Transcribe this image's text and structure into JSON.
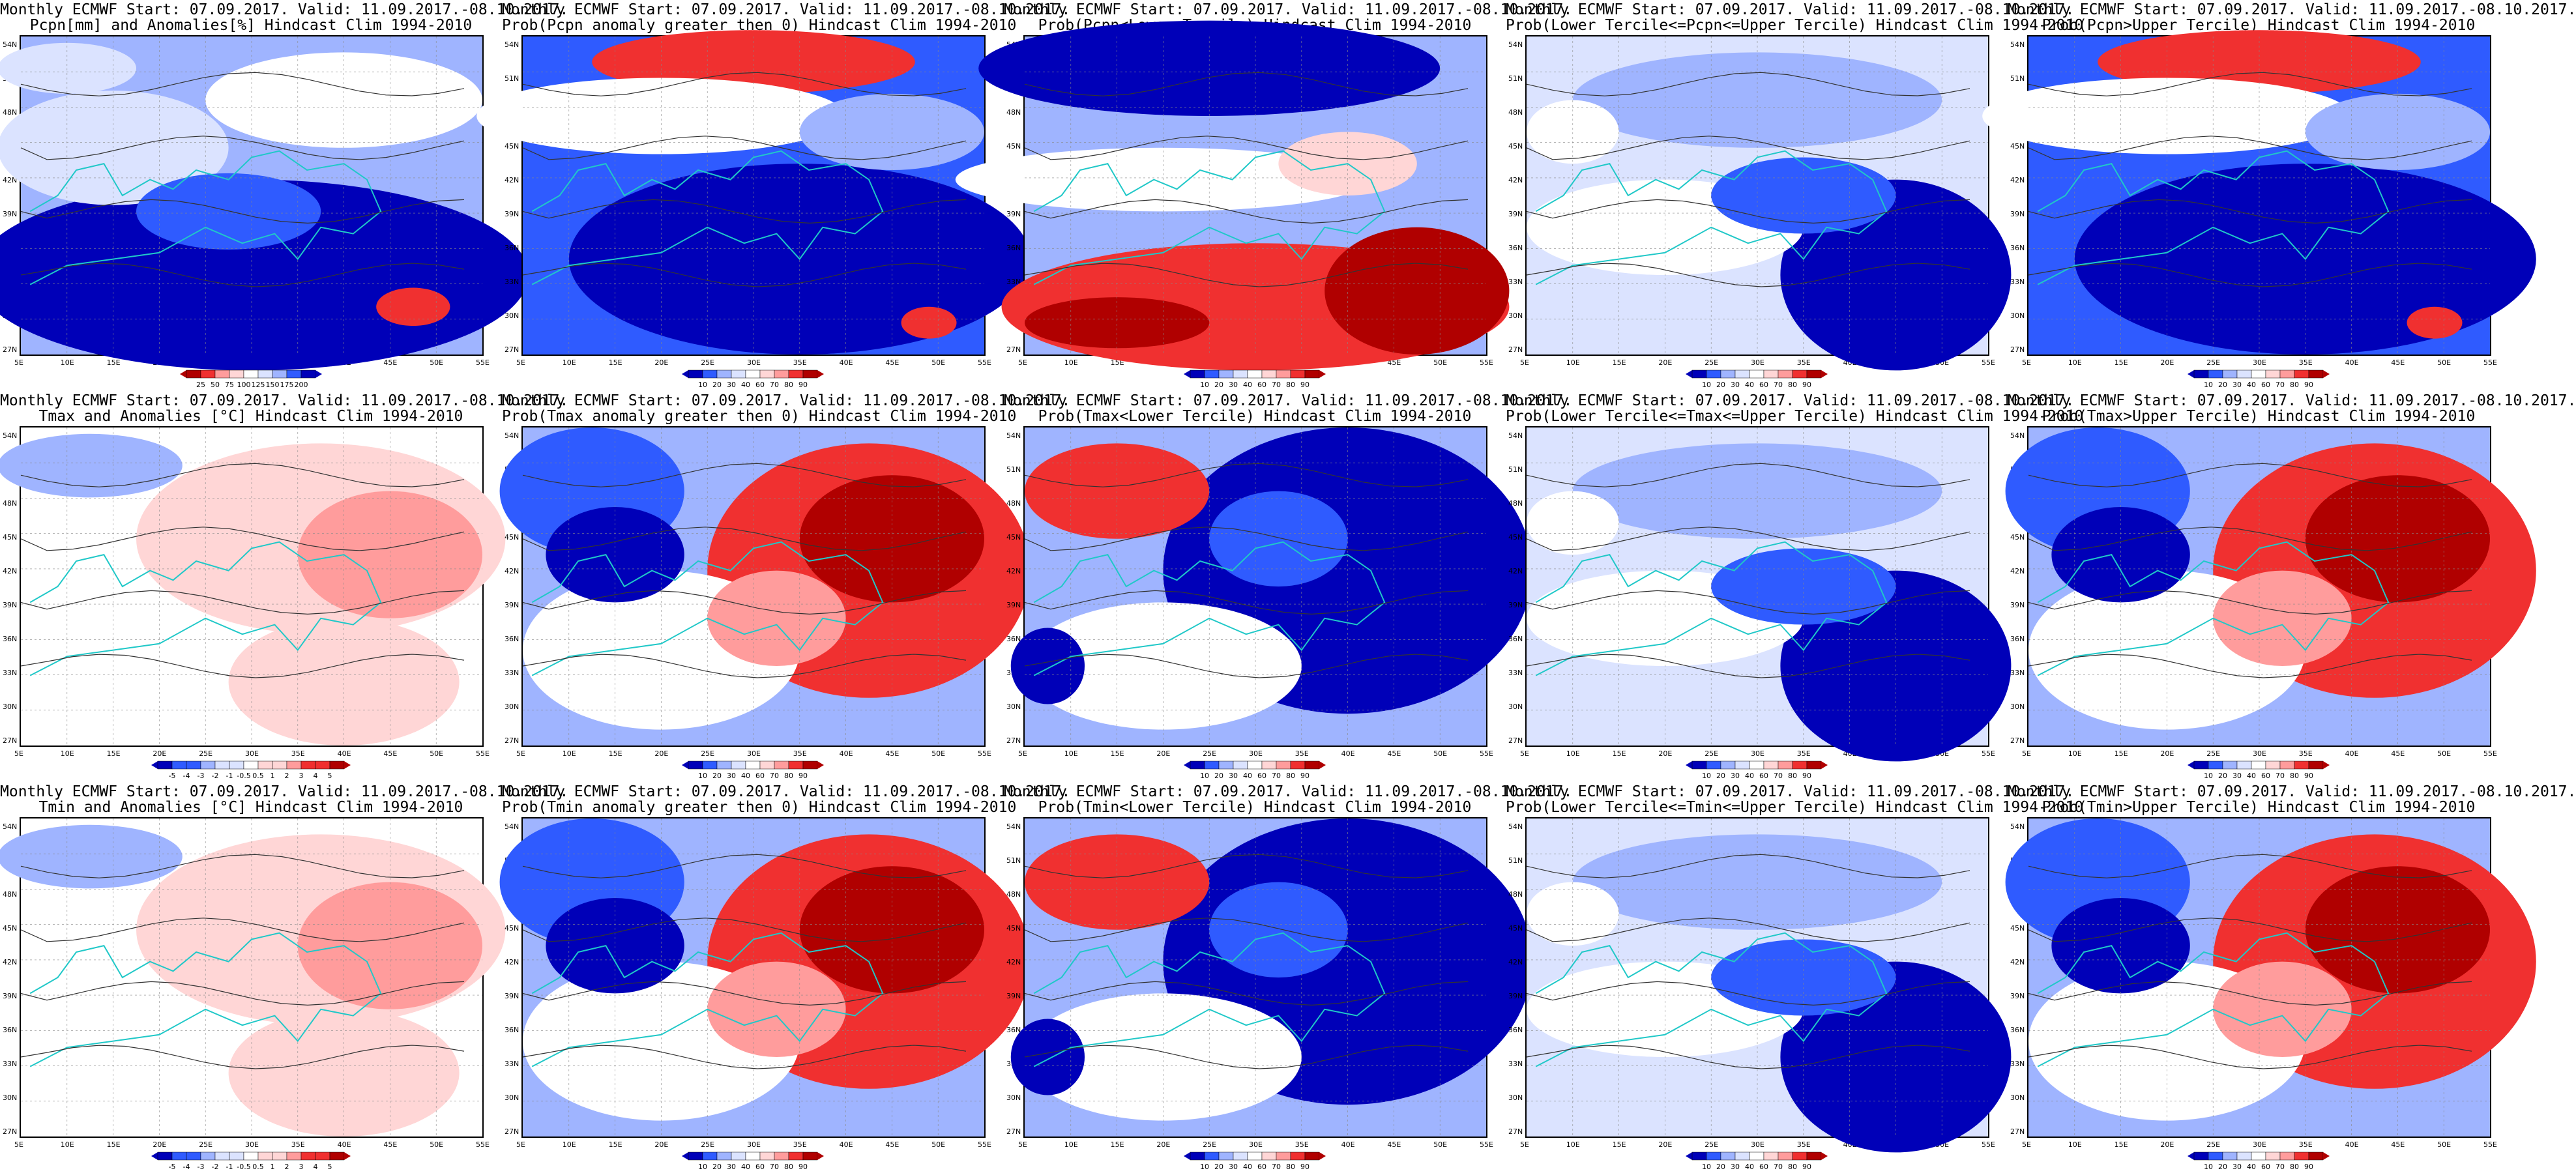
{
  "colors": {
    "deep_blue": "#0000b8",
    "blue": "#2f5bff",
    "light_blue": "#9fb4ff",
    "pale_blue": "#dbe3ff",
    "white": "#ffffff",
    "pale_red": "#ffd6d6",
    "light_red": "#ff9c9c",
    "red": "#f03030",
    "dark_red": "#b00000",
    "coast": "#20c8c8",
    "contour": "#333333"
  },
  "latitude_labels": [
    "54N",
    "51N",
    "48N",
    "45N",
    "42N",
    "39N",
    "36N",
    "33N",
    "30N",
    "27N"
  ],
  "longitude_labels": [
    "5E",
    "10E",
    "15E",
    "20E",
    "25E",
    "30E",
    "35E",
    "40E",
    "45E",
    "50E",
    "55E"
  ],
  "colorbars": {
    "precip_anom": {
      "labels": [
        "25",
        "50",
        "75",
        "100",
        "125",
        "150",
        "175",
        "200"
      ],
      "reverse": true
    },
    "temp_anom": {
      "labels": [
        "-5",
        "-4",
        "-3",
        "-2",
        "-1",
        "-0.5",
        "0.5",
        "1",
        "2",
        "3",
        "4",
        "5"
      ],
      "reverse": false
    },
    "prob": {
      "labels": [
        "10",
        "20",
        "30",
        "40",
        "60",
        "70",
        "80",
        "90"
      ],
      "reverse": false
    }
  },
  "panels": [
    {
      "id": "pcpn-anom",
      "title_line1": "Monthly ECMWF Start: 07.09.2017. Valid: 11.09.2017.-08.10.2017.",
      "title_line2": "Pcpn[mm] and Anomalies[%] Hindcast Clim 1994-2010",
      "colorbar": "precip_anom",
      "pattern": "blue-heavy"
    },
    {
      "id": "pcpn-prob-gt0",
      "title_line1": "Monthly ECMWF Start: 07.09.2017. Valid: 11.09.2017.-08.10.2017.",
      "title_line2": "Prob(Pcpn anomaly greater then 0) Hindcast Clim 1994-2010",
      "colorbar": "prob",
      "pattern": "blue-north-red"
    },
    {
      "id": "pcpn-prob-lower",
      "title_line1": "Monthly ECMWF Start: 07.09.2017. Valid: 11.09.2017.-08.10.2017.",
      "title_line2": "Prob(Pcpn<Lower Tercile) Hindcast Clim 1994-2010",
      "colorbar": "prob",
      "pattern": "red-south"
    },
    {
      "id": "pcpn-prob-middle",
      "title_line1": "Monthly ECMWF Start: 07.09.2017. Valid: 11.09.2017.-08.10.2017.",
      "title_line2": "Prob(Lower Tercile<=Pcpn<=Upper Tercile) Hindcast Clim 1994-2010",
      "colorbar": "prob",
      "pattern": "blue-mixed"
    },
    {
      "id": "pcpn-prob-upper",
      "title_line1": "Monthly ECMWF Start: 07.09.2017. Valid: 11.09.2017.-08.10.2017.",
      "title_line2": "Prob(Pcpn>Upper Tercile) Hindcast Clim 1994-2010",
      "colorbar": "prob",
      "pattern": "blue-north-red"
    },
    {
      "id": "tmax-anom",
      "title_line1": "Monthly ECMWF Start: 07.09.2017. Valid: 11.09.2017.-08.10.2017.",
      "title_line2": "Tmax and Anomalies [°C] Hindcast Clim 1994-2010",
      "colorbar": "temp_anom",
      "pattern": "pale-red-east"
    },
    {
      "id": "tmax-prob-gt0",
      "title_line1": "Monthly ECMWF Start: 07.09.2017. Valid: 11.09.2017.-08.10.2017.",
      "title_line2": "Prob(Tmax anomaly greater then 0) Hindcast Clim 1994-2010",
      "colorbar": "prob",
      "pattern": "red-east"
    },
    {
      "id": "tmax-prob-lower",
      "title_line1": "Monthly ECMWF Start: 07.09.2017. Valid: 11.09.2017.-08.10.2017.",
      "title_line2": "Prob(Tmax<Lower Tercile) Hindcast Clim 1994-2010",
      "colorbar": "prob",
      "pattern": "blue-east"
    },
    {
      "id": "tmax-prob-middle",
      "title_line1": "Monthly ECMWF Start: 07.09.2017. Valid: 11.09.2017.-08.10.2017.",
      "title_line2": "Prob(Lower Tercile<=Tmax<=Upper Tercile) Hindcast Clim 1994-2010",
      "colorbar": "prob",
      "pattern": "blue-mixed"
    },
    {
      "id": "tmax-prob-upper",
      "title_line1": "Monthly ECMWF Start: 07.09.2017. Valid: 11.09.2017.-08.10.2017.",
      "title_line2": "Prob(Tmax>Upper Tercile) Hindcast Clim 1994-2010",
      "colorbar": "prob",
      "pattern": "red-east"
    },
    {
      "id": "tmin-anom",
      "title_line1": "Monthly ECMWF Start: 07.09.2017. Valid: 11.09.2017.-08.10.2017.",
      "title_line2": "Tmin and Anomalies [°C] Hindcast Clim 1994-2010",
      "colorbar": "temp_anom",
      "pattern": "pale-red-east"
    },
    {
      "id": "tmin-prob-gt0",
      "title_line1": "Monthly ECMWF Start: 07.09.2017. Valid: 11.09.2017.-08.10.2017.",
      "title_line2": "Prob(Tmin anomaly greater then 0) Hindcast Clim 1994-2010",
      "colorbar": "prob",
      "pattern": "red-east"
    },
    {
      "id": "tmin-prob-lower",
      "title_line1": "Monthly ECMWF Start: 07.09.2017. Valid: 11.09.2017.-08.10.2017.",
      "title_line2": "Prob(Tmin<Lower Tercile) Hindcast Clim 1994-2010",
      "colorbar": "prob",
      "pattern": "blue-east"
    },
    {
      "id": "tmin-prob-middle",
      "title_line1": "Monthly ECMWF Start: 07.09.2017. Valid: 11.09.2017.-08.10.2017.",
      "title_line2": "Prob(Lower Tercile<=Tmin<=Upper Tercile) Hindcast Clim 1994-2010",
      "colorbar": "prob",
      "pattern": "blue-mixed"
    },
    {
      "id": "tmin-prob-upper",
      "title_line1": "Monthly ECMWF Start: 07.09.2017. Valid: 11.09.2017.-08.10.2017.",
      "title_line2": "Prob(Tmin>Upper Tercile) Hindcast Clim 1994-2010",
      "colorbar": "prob",
      "pattern": "red-east"
    }
  ]
}
